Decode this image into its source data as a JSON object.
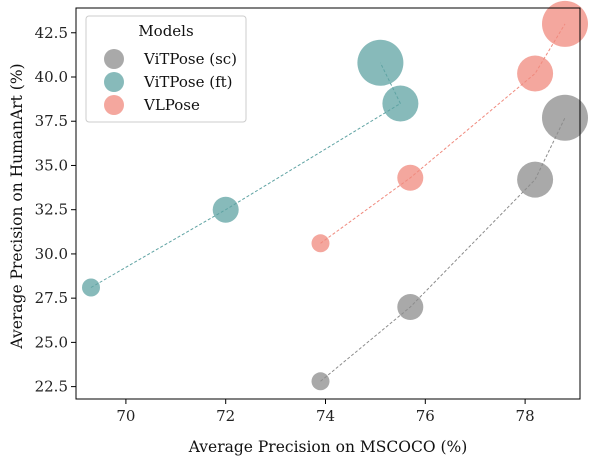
{
  "chart_data": {
    "type": "scatter",
    "xlabel": "Average Precision on MSCOCO (%)",
    "ylabel": "Average Precision on HumanArt (%)",
    "xlim": [
      69.0,
      79.1
    ],
    "ylim": [
      21.8,
      43.9
    ],
    "xticks": [
      70,
      72,
      74,
      76,
      78
    ],
    "yticks": [
      22.5,
      25.0,
      27.5,
      30.0,
      32.5,
      35.0,
      37.5,
      40.0,
      42.5
    ],
    "xtick_labels": [
      "70",
      "72",
      "74",
      "76",
      "78"
    ],
    "ytick_labels": [
      "22.5",
      "25.0",
      "27.5",
      "30.0",
      "32.5",
      "35.0",
      "37.5",
      "40.0",
      "42.5"
    ],
    "grid": false,
    "legend": {
      "title": "Models",
      "position": "top-left"
    },
    "series": [
      {
        "name": "ViTPose (sc)",
        "color": "#8c8c8c",
        "line_style": "dashed",
        "x": [
          73.9,
          75.7,
          78.2,
          78.8
        ],
        "y": [
          22.8,
          27.0,
          34.2,
          37.7
        ],
        "size": [
          1,
          2,
          3,
          4
        ]
      },
      {
        "name": "ViTPose (ft)",
        "color": "#5fa3a3",
        "line_style": "dashed",
        "x": [
          69.3,
          72.0,
          75.5,
          75.1
        ],
        "y": [
          28.1,
          32.5,
          38.5,
          40.8
        ],
        "size": [
          1,
          2,
          3,
          4
        ]
      },
      {
        "name": "VLPose",
        "color": "#f08a7e",
        "line_style": "dashed",
        "x": [
          73.9,
          75.7,
          78.2,
          78.8
        ],
        "y": [
          30.6,
          34.3,
          40.2,
          43.0
        ],
        "size": [
          1,
          2,
          3,
          4
        ]
      }
    ]
  }
}
